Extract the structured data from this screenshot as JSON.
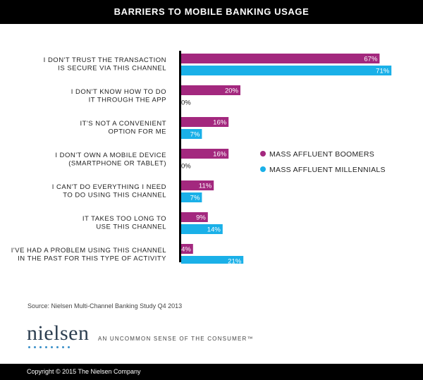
{
  "header": {
    "title": "BARRIERS TO MOBILE BANKING USAGE"
  },
  "chart_data": {
    "type": "bar",
    "orientation": "horizontal",
    "title": "BARRIERS TO MOBILE BANKING USAGE",
    "categories": [
      [
        "I DON'T TRUST THE TRANSACTION",
        "IS SECURE VIA THIS CHANNEL"
      ],
      [
        "I DON'T KNOW HOW TO DO",
        "IT THROUGH THE APP"
      ],
      [
        "IT'S NOT A CONVENIENT",
        "OPTION FOR ME"
      ],
      [
        "I DON'T OWN A MOBILE DEVICE",
        "(SMARTPHONE OR TABLET)"
      ],
      [
        "I CAN'T DO EVERYTHING I NEED",
        "TO DO USING THIS CHANNEL"
      ],
      [
        "IT TAKES TOO LONG TO",
        "USE THIS CHANNEL"
      ],
      [
        "I'VE HAD A PROBLEM USING THIS CHANNEL",
        "IN THE PAST FOR THIS TYPE OF ACTIVITY"
      ]
    ],
    "series": [
      {
        "name": "MASS AFFLUENT BOOMERS",
        "color": "#a3287e",
        "values": [
          67,
          20,
          16,
          16,
          11,
          9,
          4
        ]
      },
      {
        "name": "MASS AFFLUENT MILLENNIALS",
        "color": "#1ab0e8",
        "values": [
          71,
          0,
          7,
          0,
          7,
          14,
          21
        ]
      }
    ],
    "value_suffix": "%",
    "xlim": [
      0,
      100
    ],
    "grid": false,
    "legend_position": "right"
  },
  "legend": {
    "boomers": "MASS AFFLUENT BOOMERS",
    "millennials": "MASS AFFLUENT MILLENNIALS",
    "boomers_color": "#a3287e",
    "millennials_color": "#1ab0e8"
  },
  "source": "Source: Nielsen Multi-Channel Banking Study Q4 2013",
  "branding": {
    "logo_text": "nielsen",
    "tagline": "AN UNCOMMON SENSE OF THE CONSUMER™",
    "logo_color": "#2c3e50",
    "dot_color": "#3a8fc8"
  },
  "footer": {
    "copyright": "Copyright © 2015 The Nielsen Company"
  }
}
